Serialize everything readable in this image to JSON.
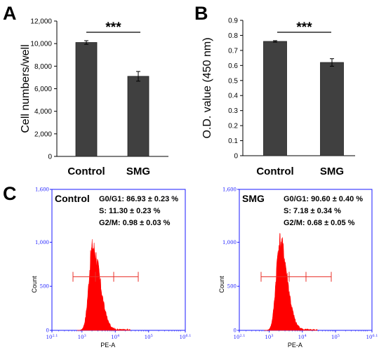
{
  "panels": {
    "a": {
      "letter": "A"
    },
    "b": {
      "letter": "B"
    },
    "c": {
      "letter": "C"
    }
  },
  "colors": {
    "bar": "#404040",
    "histogram": "#ff0000",
    "cytometry_axis": "#1a1aff"
  },
  "chart_data": [
    {
      "panel": "A",
      "type": "bar",
      "categories": [
        "Control",
        "SMG"
      ],
      "values": [
        10100,
        7100
      ],
      "errors": [
        160,
        430
      ],
      "ylabel": "Cell numbers/well",
      "ylim": [
        0,
        12000
      ],
      "yticks": [
        "0",
        "2,000",
        "4,000",
        "6,000",
        "8,000",
        "10,000",
        "12,000"
      ],
      "significance": "***"
    },
    {
      "panel": "B",
      "type": "bar",
      "categories": [
        "Control",
        "SMG"
      ],
      "values": [
        0.76,
        0.62
      ],
      "errors": [
        0.005,
        0.025
      ],
      "ylabel": "O.D. value (450 nm)",
      "ylim": [
        0,
        0.9
      ],
      "yticks": [
        "0",
        "0.1",
        "0.2",
        "0.3",
        "0.4",
        "0.5",
        "0.6",
        "0.7",
        "0.8",
        "0.9"
      ],
      "significance": "***"
    },
    {
      "panel": "C",
      "type": "area",
      "name": "Control",
      "xlabel": "PE-A",
      "ylabel": "Count",
      "ylim": [
        0,
        1600
      ],
      "yticks": [
        "0",
        "500",
        "1,000",
        "1,600"
      ],
      "xticks": [
        "10^2.1",
        "10^3",
        "10^4",
        "10^5",
        "10^6.1"
      ],
      "peak": 950,
      "stats": [
        "G0/G1: 86.93 ± 0.23 %",
        "S: 11.30 ± 0.23 %",
        "G2/M: 0.98 ± 0.03 %"
      ]
    },
    {
      "panel": "C",
      "type": "area",
      "name": "SMG",
      "xlabel": "PE-A",
      "ylabel": "Count",
      "ylim": [
        0,
        1600
      ],
      "yticks": [
        "0",
        "500",
        "1,000",
        "1,600"
      ],
      "xticks": [
        "10^2.1",
        "10^3",
        "10^4",
        "10^5",
        "10^6.1"
      ],
      "peak": 1010,
      "stats": [
        "G0/G1: 90.60 ± 0.40 %",
        "S: 7.18 ± 0.34 %",
        "G2/M: 0.68 ± 0.05 %"
      ]
    }
  ]
}
